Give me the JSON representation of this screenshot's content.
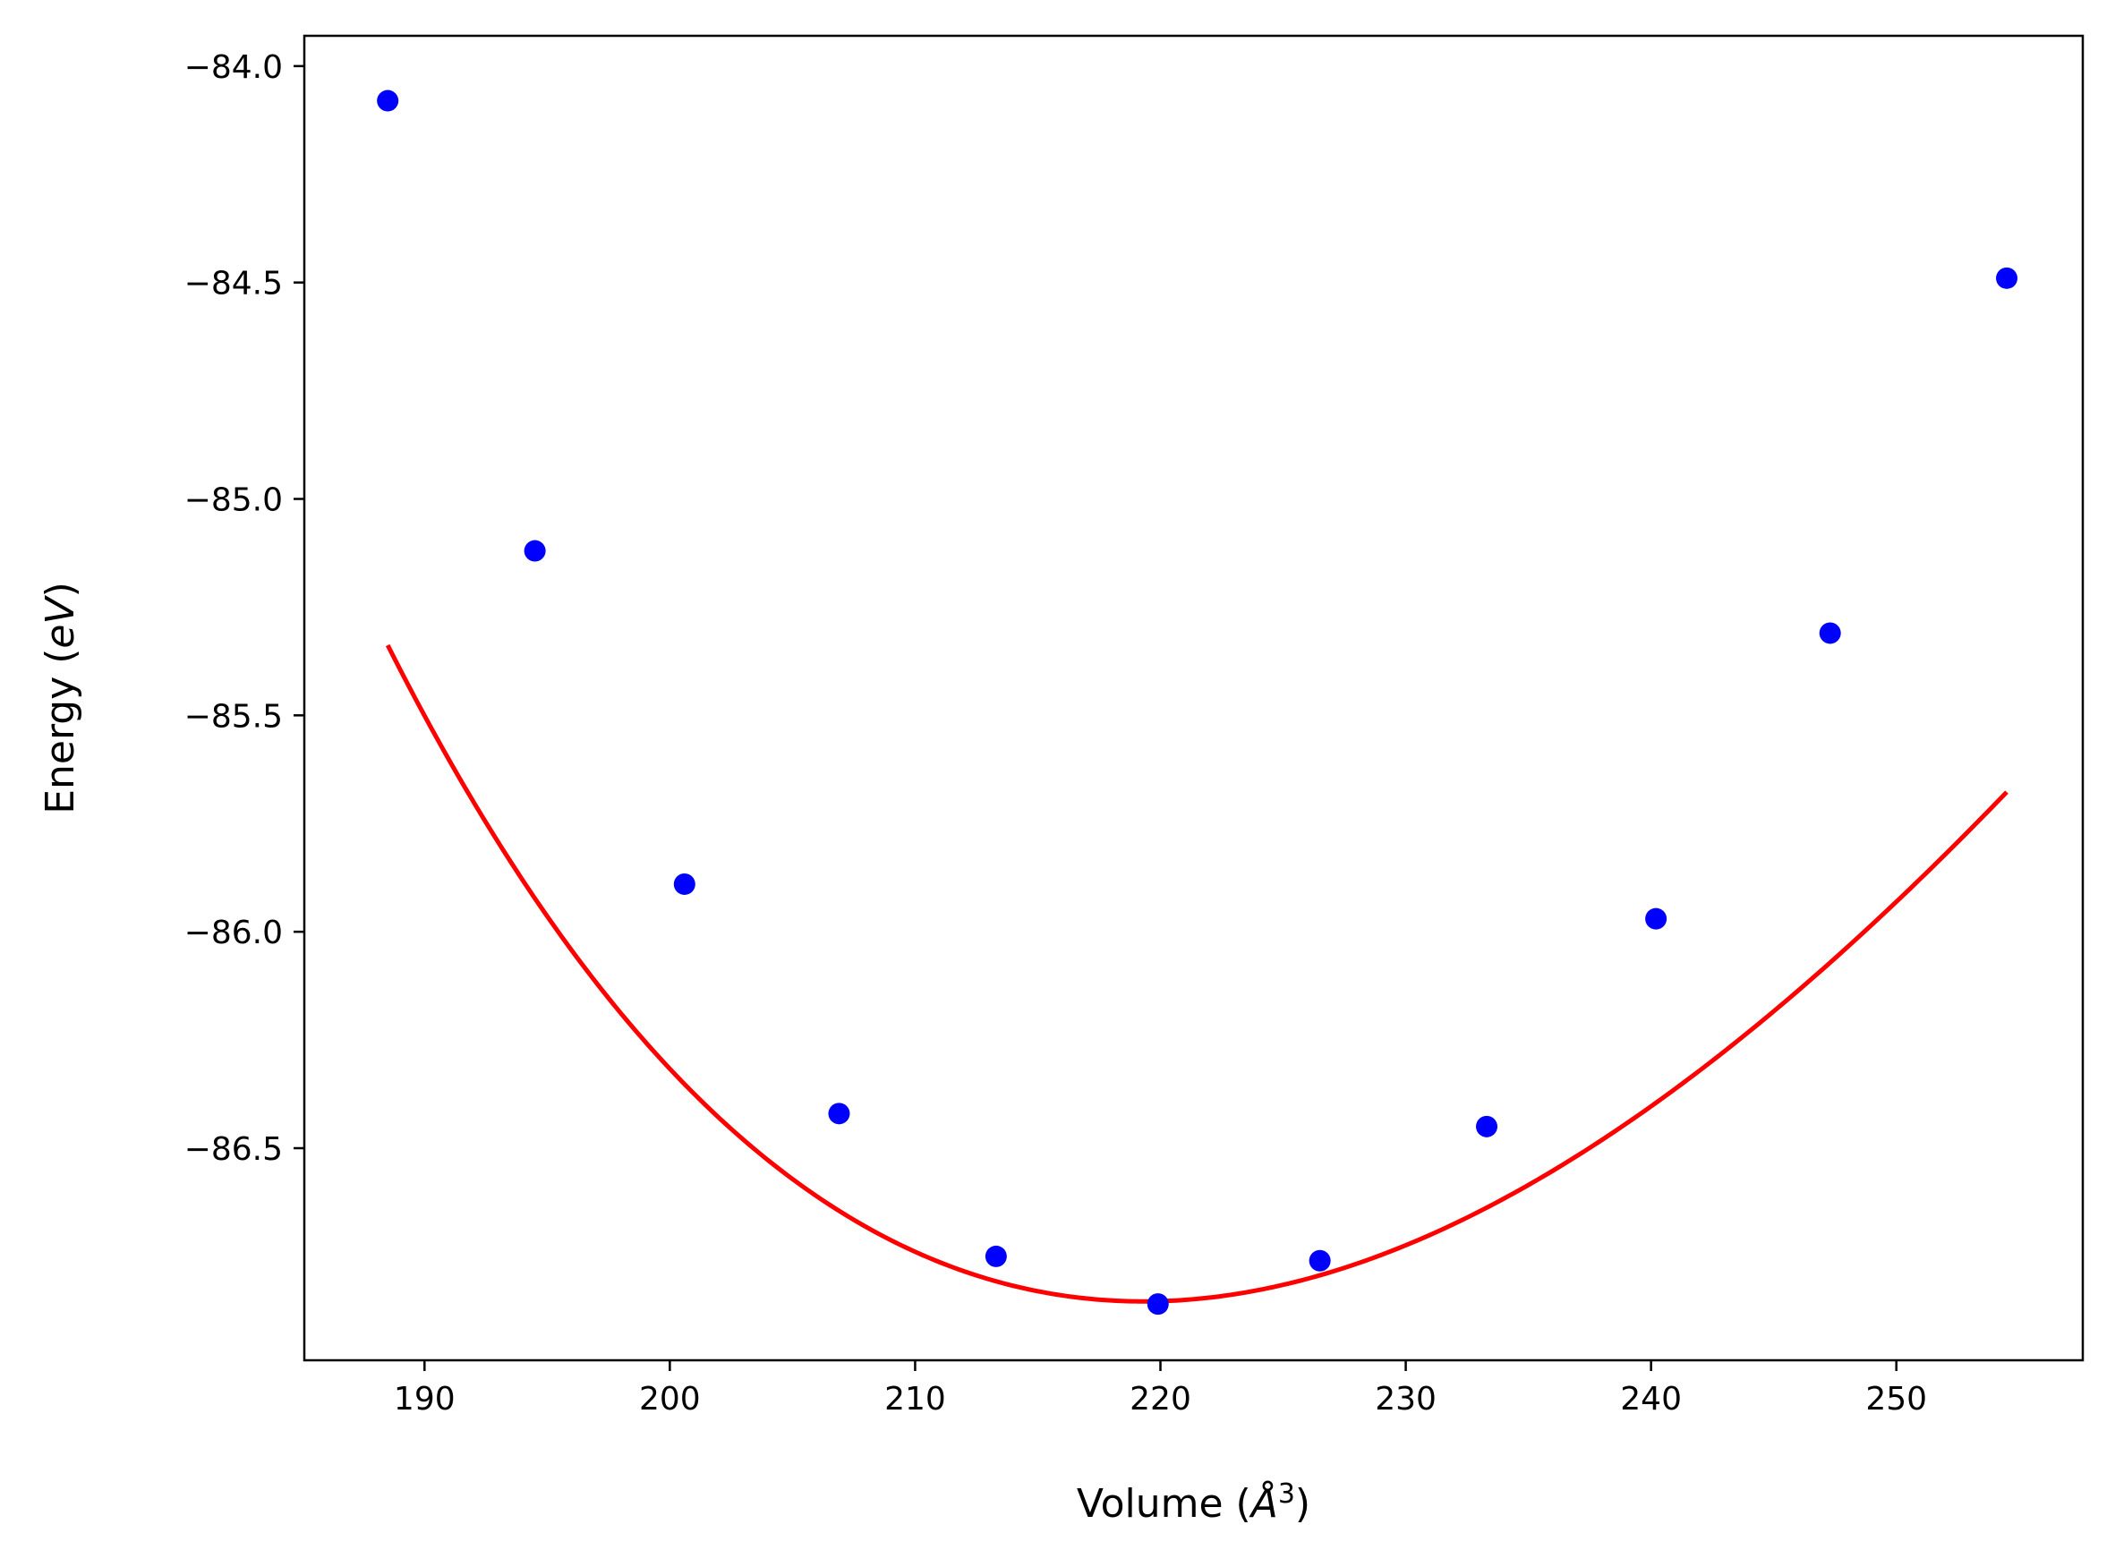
{
  "chart_data": {
    "type": "scatter",
    "title": "",
    "xlabel": "Volume (",
    "xlabel_math": "Å",
    "xlabel_sup": "3",
    "xlabel_close": ")",
    "ylabel": "Energy (",
    "ylabel_math": "eV",
    "ylabel_close": ")",
    "xlim": [
      185.1,
      257.6
    ],
    "ylim": [
      -86.99,
      -83.93
    ],
    "xticks": [
      190,
      200,
      210,
      220,
      230,
      240,
      250
    ],
    "xtick_labels": [
      "190",
      "200",
      "210",
      "220",
      "230",
      "240",
      "250"
    ],
    "yticks": [
      -84.0,
      -84.5,
      -85.0,
      -85.5,
      -86.0,
      -86.5
    ],
    "ytick_labels": [
      "−84.0",
      "−84.5",
      "−85.0",
      "−85.5",
      "−86.0",
      "−86.5"
    ],
    "grid": false,
    "legend": "none",
    "series": [
      {
        "kind": "points",
        "color": "#0000ff",
        "x": [
          188.5,
          194.5,
          200.6,
          206.9,
          213.3,
          219.9,
          226.5,
          233.3,
          240.2,
          247.3,
          254.5
        ],
        "y": [
          -84.08,
          -85.12,
          -85.89,
          -86.42,
          -86.75,
          -86.86,
          -86.76,
          -86.45,
          -85.97,
          -85.31,
          -84.49
        ]
      },
      {
        "kind": "fit-curve",
        "color": "#ff0000",
        "model": "birch-murnaghan",
        "E0": -86.854,
        "V0": 219.3,
        "B0": 0.5395,
        "B0p": 4.2,
        "x_range": [
          188.5,
          254.5
        ]
      }
    ]
  }
}
